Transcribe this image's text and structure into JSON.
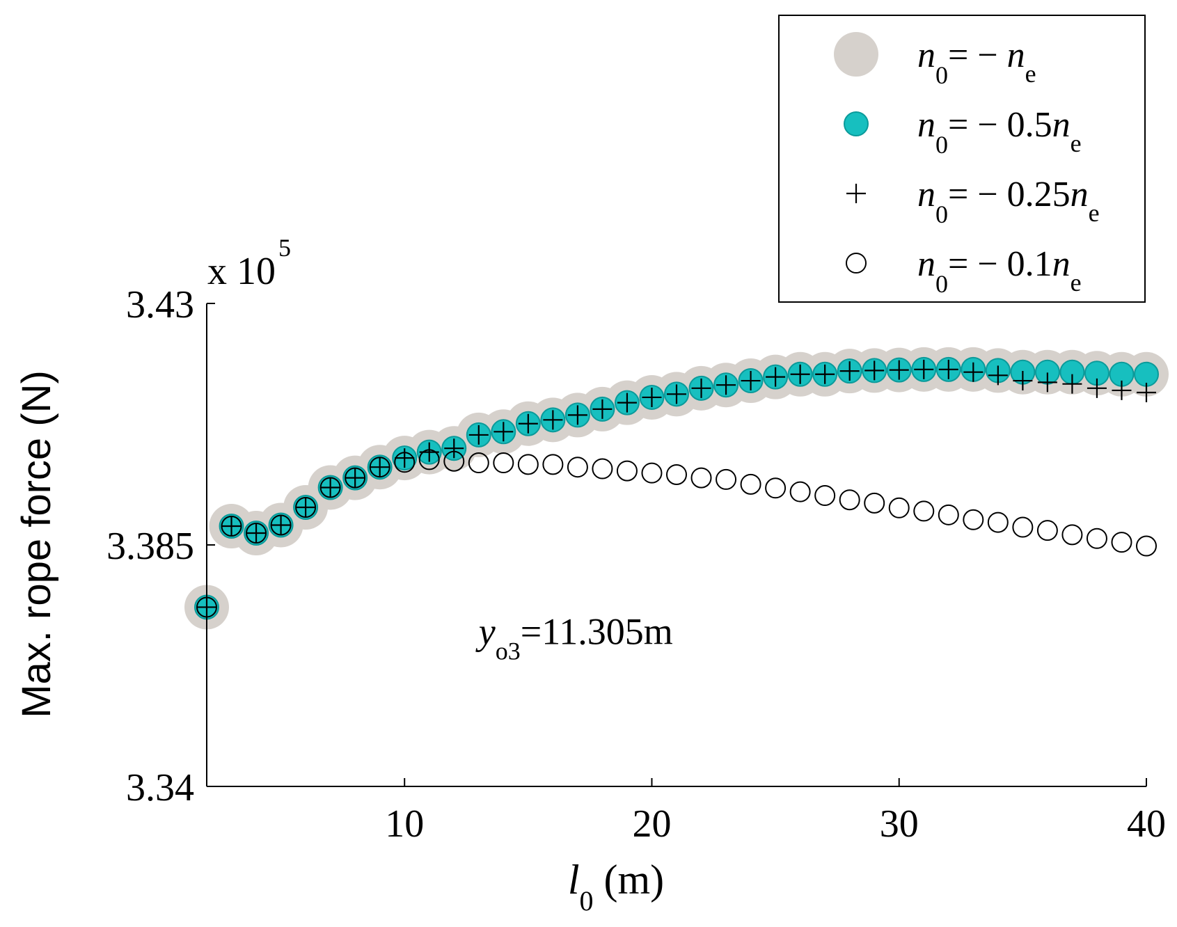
{
  "chart_data": {
    "type": "scatter",
    "ylabel": "Max. rope force (N)",
    "xlabel_var": "l",
    "xlabel_sub": "0",
    "xlabel_unit": " (m)",
    "y_multiplier_base": "x 10",
    "y_multiplier_exp": "5",
    "xlim": [
      2,
      40
    ],
    "ylim": [
      3.34,
      3.43
    ],
    "xticks": [
      10,
      20,
      30,
      40
    ],
    "xtick_labels": [
      "10",
      "20",
      "30",
      "40"
    ],
    "yticks": [
      3.34,
      3.385,
      3.43
    ],
    "ytick_labels": [
      "3.34",
      "3.385",
      "3.43"
    ],
    "annotation": {
      "var": "y",
      "sub": "o3",
      "text": "=11.305m",
      "x": 13,
      "y": 3.3665
    },
    "x": [
      2,
      3,
      4,
      5,
      6,
      7,
      8,
      9,
      10,
      11,
      12,
      13,
      14,
      15,
      16,
      17,
      18,
      19,
      20,
      21,
      22,
      23,
      24,
      25,
      26,
      27,
      28,
      29,
      30,
      31,
      32,
      33,
      34,
      35,
      36,
      37,
      38,
      39,
      40
    ],
    "series": [
      {
        "name": "n0 = -ne",
        "legend_var": "n",
        "legend_sub": "0",
        "legend_eq": "= − ",
        "legend_coef": "",
        "legend_end_var": "n",
        "legend_end_sub": "e",
        "marker": "big-gray-circle",
        "color": "#d6d1cc",
        "values": [
          3.3734,
          3.3885,
          3.3872,
          3.3887,
          3.392,
          3.3957,
          3.3975,
          3.3995,
          3.4012,
          3.4023,
          3.403,
          3.4055,
          3.4061,
          3.4076,
          3.4083,
          3.4092,
          3.4103,
          3.4115,
          3.4125,
          3.4131,
          3.4142,
          3.4148,
          3.4156,
          3.4163,
          3.4168,
          3.4168,
          3.4174,
          3.4175,
          3.4176,
          3.4177,
          3.4177,
          3.4177,
          3.4175,
          3.4172,
          3.4172,
          3.4172,
          3.417,
          3.4168,
          3.4168
        ]
      },
      {
        "name": "n0 = -0.5ne",
        "legend_var": "n",
        "legend_sub": "0",
        "legend_eq": "= − ",
        "legend_coef": "0.5",
        "legend_end_var": "n",
        "legend_end_sub": "e",
        "marker": "teal-circle",
        "color": "#17bfbf",
        "values": [
          3.3734,
          3.3885,
          3.3872,
          3.3887,
          3.392,
          3.3957,
          3.3975,
          3.3995,
          3.4012,
          3.4023,
          3.403,
          3.4055,
          3.4061,
          3.4076,
          3.4083,
          3.4092,
          3.4103,
          3.4115,
          3.4125,
          3.4131,
          3.4142,
          3.4148,
          3.4156,
          3.4163,
          3.4168,
          3.4168,
          3.4174,
          3.4175,
          3.4176,
          3.4177,
          3.4177,
          3.4177,
          3.4175,
          3.4172,
          3.4172,
          3.4172,
          3.417,
          3.4168,
          3.4168
        ]
      },
      {
        "name": "n0 = -0.25ne",
        "legend_var": "n",
        "legend_sub": "0",
        "legend_eq": "= − ",
        "legend_coef": "0.25",
        "legend_end_var": "n",
        "legend_end_sub": "e",
        "marker": "plus",
        "color": "#000000",
        "values": [
          3.3734,
          3.3885,
          3.3872,
          3.3887,
          3.392,
          3.3957,
          3.3975,
          3.3995,
          3.4012,
          3.4023,
          3.403,
          3.4055,
          3.4061,
          3.4076,
          3.4083,
          3.4092,
          3.4103,
          3.4115,
          3.4125,
          3.4131,
          3.4142,
          3.4148,
          3.4156,
          3.4163,
          3.4168,
          3.4168,
          3.4174,
          3.4175,
          3.4176,
          3.4177,
          3.4177,
          3.4172,
          3.4166,
          3.4156,
          3.4153,
          3.415,
          3.4142,
          3.4138,
          3.4134
        ]
      },
      {
        "name": "n0 = -0.1ne",
        "legend_var": "n",
        "legend_sub": "0",
        "legend_eq": "= − ",
        "legend_coef": "0.1",
        "legend_end_var": "n",
        "legend_end_sub": "e",
        "marker": "open-circle",
        "color": "#000000",
        "values": [
          3.3734,
          3.3885,
          3.3872,
          3.3887,
          3.392,
          3.3957,
          3.3975,
          3.3995,
          3.4004,
          3.4009,
          3.4006,
          3.4003,
          3.4003,
          3.4,
          3.4,
          3.3995,
          3.3992,
          3.3988,
          3.3984,
          3.3981,
          3.3975,
          3.3972,
          3.3963,
          3.3956,
          3.3949,
          3.3942,
          3.3934,
          3.3928,
          3.3919,
          3.3913,
          3.3906,
          3.3897,
          3.3892,
          3.3883,
          3.3877,
          3.3869,
          3.3862,
          3.3855,
          3.3848
        ]
      }
    ],
    "legend_location": "top-right"
  }
}
